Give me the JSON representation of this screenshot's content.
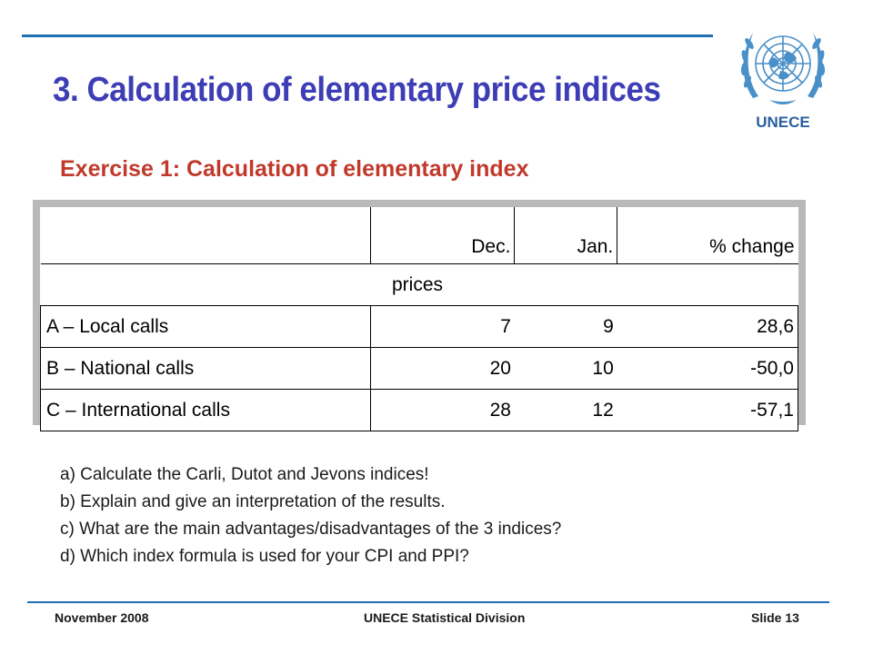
{
  "slide": {
    "title": "3. Calculation of elementary price indices",
    "subtitle": "Exercise 1: Calculation of elementary index",
    "logo_text": "UNECE",
    "colors": {
      "title": "#3d3db5",
      "subtitle": "#c0392b",
      "rules": "#1f6fb2"
    }
  },
  "table": {
    "headers": [
      "",
      "Dec.",
      "Jan.",
      "% change"
    ],
    "group_label": "prices",
    "rows": [
      [
        "A – Local calls",
        "7",
        "9",
        "28,6"
      ],
      [
        "B – National calls",
        "20",
        "10",
        "-50,0"
      ],
      [
        "C – International calls",
        "28",
        "12",
        "-57,1"
      ]
    ]
  },
  "questions": [
    "a) Calculate the Carli, Dutot and Jevons indices!",
    "b) Explain and give an interpretation of the results.",
    "c) What are the main advantages/disadvantages of the 3 indices?",
    "d) Which index formula is used for your CPI and PPI?"
  ],
  "footer": {
    "date": "November 2008",
    "org": "UNECE Statistical Division",
    "slide": "Slide 13"
  }
}
